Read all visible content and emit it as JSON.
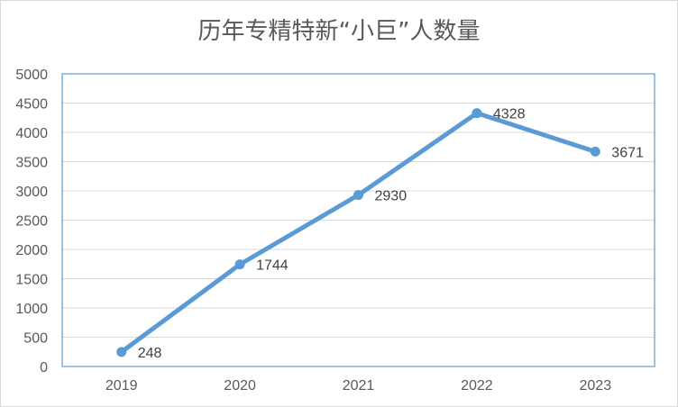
{
  "chart_data": {
    "type": "line",
    "title": "历年专精特新“小巨”人数量",
    "categories": [
      "2019",
      "2020",
      "2021",
      "2022",
      "2023"
    ],
    "series": [
      {
        "values": [
          248,
          1744,
          2930,
          4328,
          3671
        ],
        "color": "#5b9bd5"
      }
    ],
    "data_labels": [
      "248",
      "1744",
      "2930",
      "4328",
      "3671"
    ],
    "ylim": [
      0,
      5000
    ],
    "yticks": [
      "0",
      "500",
      "1000",
      "1500",
      "2000",
      "2500",
      "3000",
      "3500",
      "4000",
      "4500",
      "5000"
    ],
    "grid": true,
    "plot_border_color": "#5b9bd5",
    "gridline_color": "#d9d9d9"
  }
}
